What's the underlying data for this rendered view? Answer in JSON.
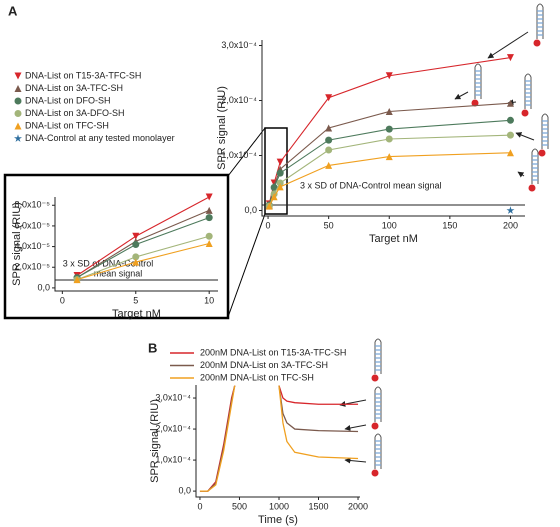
{
  "chart_data": [
    {
      "type": "scatter",
      "panel": "A",
      "x_label": "Target nM",
      "y_label": "SPR signal (RIU)",
      "x": [
        1,
        5,
        10,
        50,
        100,
        200
      ],
      "xlim": [
        -5,
        212
      ],
      "xticks": [
        0,
        50,
        100,
        150,
        200
      ],
      "ylim": [
        -1e-05,
        0.00031
      ],
      "yticks": [
        {
          "value": 0,
          "label": "0,0"
        },
        {
          "value": 0.0001,
          "label": "1,0x10⁻⁴"
        },
        {
          "value": 0.0002,
          "label": "2,0x10⁻⁴"
        },
        {
          "value": 0.0003,
          "label": "3,0x10⁻⁴"
        }
      ],
      "threshold": {
        "value": 1e-05,
        "text": [
          "3 x SD of DNA-Control mean signal"
        ]
      },
      "legend": "upper left",
      "series": [
        {
          "name": "DNA-List on T15-3A-TFC-SH",
          "color": "#d7262b",
          "marker": "triangle-down",
          "values": [
            1.2e-05,
            5e-05,
            8.8e-05,
            0.000205,
            0.000245,
            0.000278
          ]
        },
        {
          "name": "DNA-List on 3A-TFC-SH",
          "color": "#7b5a4d",
          "marker": "triangle-up",
          "values": [
            1e-05,
            4.5e-05,
            7.5e-05,
            0.00015,
            0.00018,
            0.000195
          ]
        },
        {
          "name": "DNA-List on DFO-SH",
          "color": "#4d7a5c",
          "marker": "circle",
          "values": [
            1e-05,
            4.2e-05,
            6.8e-05,
            0.000128,
            0.000148,
            0.000164
          ]
        },
        {
          "name": "DNA-List on 3A-DFO-SH",
          "color": "#a3b57a",
          "marker": "circle",
          "values": [
            8e-06,
            3e-05,
            5e-05,
            0.00011,
            0.00013,
            0.000137
          ]
        },
        {
          "name": "DNA-List on TFC-SH",
          "color": "#f0a020",
          "marker": "triangle-up",
          "values": [
            8e-06,
            2.5e-05,
            4.3e-05,
            8.2e-05,
            9.8e-05,
            0.000105
          ]
        },
        {
          "name": "DNA-Control at any tested monolayer",
          "color": "#2f6f9f",
          "marker": "star",
          "line": false,
          "values": [
            null,
            null,
            null,
            null,
            null,
            0
          ]
        }
      ]
    },
    {
      "type": "scatter",
      "x_label": "Target nM",
      "y_label": "SPR signal (RIU)",
      "x": [
        1,
        5,
        10
      ],
      "xlim": [
        -0.5,
        10.6
      ],
      "xticks": [
        0,
        5,
        10
      ],
      "ylim": [
        -3e-06,
        8.8e-05
      ],
      "yticks": [
        {
          "value": 0,
          "label": "0,0"
        },
        {
          "value": 2e-05,
          "label": "2,0x10⁻⁵"
        },
        {
          "value": 4e-05,
          "label": "4,0x10⁻⁵"
        },
        {
          "value": 6e-05,
          "label": "6,0x10⁻⁵"
        },
        {
          "value": 8e-05,
          "label": "8,0x10⁻⁵"
        }
      ],
      "threshold": {
        "value": 7.6e-06,
        "text": [
          "3 x SD of DNA-Control",
          "mean signal"
        ]
      },
      "series": [
        {
          "color": "#d7262b",
          "marker": "triangle-down",
          "values": [
            1.2e-05,
            5e-05,
            8.8e-05
          ]
        },
        {
          "color": "#7b5a4d",
          "marker": "triangle-up",
          "values": [
            1e-05,
            4.5e-05,
            7.5e-05
          ]
        },
        {
          "color": "#4d7a5c",
          "marker": "circle",
          "values": [
            1e-05,
            4.2e-05,
            6.8e-05
          ]
        },
        {
          "color": "#a3b57a",
          "marker": "circle",
          "values": [
            8e-06,
            3e-05,
            5e-05
          ]
        },
        {
          "color": "#f0a020",
          "marker": "triangle-up",
          "values": [
            8e-06,
            2.5e-05,
            4.3e-05
          ]
        }
      ]
    },
    {
      "type": "line",
      "panel": "B",
      "x_label": "Time (s)",
      "y_label": "SPR signal (RIU)",
      "x": [
        0,
        100,
        200,
        300,
        400,
        440,
        700,
        1000,
        1050,
        1100,
        1200,
        1500,
        2000
      ],
      "xlim": [
        -50,
        2025
      ],
      "xticks": [
        0,
        500,
        1000,
        1500,
        2000
      ],
      "ylim": [
        -1.9e-05,
        0.000342
      ],
      "yticks": [
        {
          "value": 0,
          "label": "0,0"
        },
        {
          "value": 0.0001,
          "label": "1,0x10⁻⁴"
        },
        {
          "value": 0.0002,
          "label": "2,0x10⁻⁴"
        },
        {
          "value": 0.0003,
          "label": "3,0x10⁻⁴"
        }
      ],
      "legend": "top",
      "series": [
        {
          "name": "200nM DNA-List on T15-3A-TFC-SH",
          "color": "#d7262b",
          "values": [
            0,
            0,
            3e-05,
            0.00015,
            0.0003,
            0.00034,
            null,
            0.00034,
            0.0003,
            0.00029,
            0.000285,
            0.00028,
            0.00028
          ]
        },
        {
          "name": "200nM DNA-List on 3A-TFC-SH",
          "color": "#7b5a4d",
          "values": [
            0,
            0,
            2.5e-05,
            0.00014,
            0.00029,
            0.00034,
            null,
            0.00034,
            0.00025,
            0.00022,
            0.0002,
            0.000195,
            0.000192
          ]
        },
        {
          "name": "200nM DNA-List on TFC-SH",
          "color": "#f0a020",
          "values": [
            0,
            0,
            2e-05,
            0.00013,
            0.00028,
            0.00034,
            null,
            0.00034,
            0.00022,
            0.00016,
            0.000125,
            0.00011,
            0.000105
          ]
        }
      ]
    }
  ]
}
